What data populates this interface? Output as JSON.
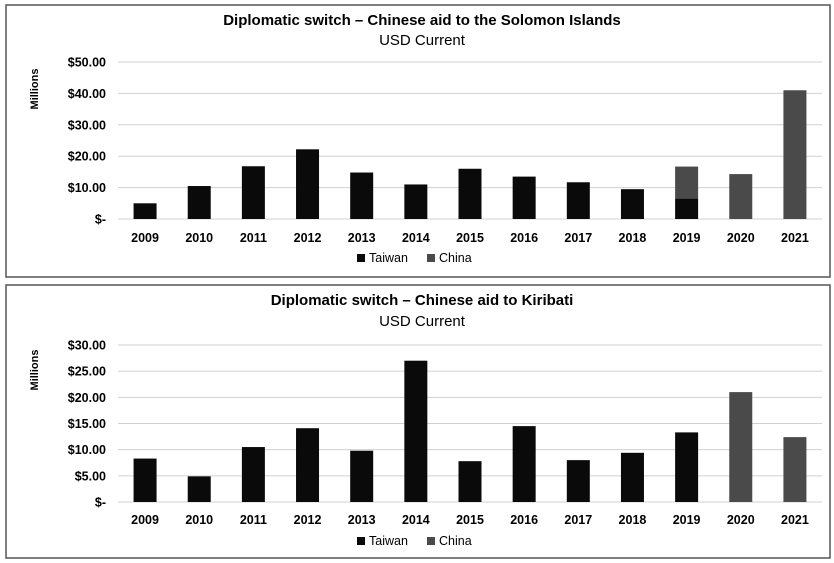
{
  "chart_data": [
    {
      "type": "bar",
      "stacked": true,
      "title": "Diplomatic switch – Chinese aid to the Solomon Islands",
      "subtitle": "USD Current",
      "ylabel": "Millions",
      "xlabel": "",
      "ylim": [
        0,
        50
      ],
      "yticks": [
        0,
        10,
        20,
        30,
        40,
        50
      ],
      "ytick_labels": [
        "$-",
        "$10.00",
        "$20.00",
        "$30.00",
        "$40.00",
        "$50.00"
      ],
      "categories": [
        "2009",
        "2010",
        "2011",
        "2012",
        "2013",
        "2014",
        "2015",
        "2016",
        "2017",
        "2018",
        "2019",
        "2020",
        "2021"
      ],
      "series": [
        {
          "name": "Taiwan",
          "color": "#0a0a0a",
          "values": [
            5,
            10.5,
            16.8,
            22.2,
            14.8,
            11,
            16,
            13.5,
            11.7,
            9.5,
            6.5,
            0,
            0
          ]
        },
        {
          "name": "China",
          "color": "#4a4a4a",
          "values": [
            0,
            0,
            0,
            0,
            0,
            0,
            0,
            0,
            0,
            0,
            10.2,
            14.3,
            41
          ]
        }
      ],
      "grid": true,
      "legend": "bottom"
    },
    {
      "type": "bar",
      "stacked": true,
      "title": "Diplomatic switch – Chinese aid to Kiribati",
      "subtitle": "USD Current",
      "ylabel": "Millions",
      "xlabel": "",
      "ylim": [
        0,
        30
      ],
      "yticks": [
        0,
        5,
        10,
        15,
        20,
        25,
        30
      ],
      "ytick_labels": [
        "$-",
        "$5.00",
        "$10.00",
        "$15.00",
        "$20.00",
        "$25.00",
        "$30.00"
      ],
      "categories": [
        "2009",
        "2010",
        "2011",
        "2012",
        "2013",
        "2014",
        "2015",
        "2016",
        "2017",
        "2018",
        "2019",
        "2020",
        "2021"
      ],
      "series": [
        {
          "name": "Taiwan",
          "color": "#0a0a0a",
          "values": [
            8.3,
            4.9,
            10.5,
            14.1,
            9.8,
            27,
            7.8,
            14.5,
            8,
            9.4,
            13.3,
            0,
            0
          ]
        },
        {
          "name": "China",
          "color": "#4a4a4a",
          "values": [
            0,
            0,
            0,
            0,
            0,
            0,
            0,
            0,
            0,
            0,
            0,
            21,
            12.4
          ]
        }
      ],
      "grid": true,
      "legend": "bottom"
    }
  ]
}
